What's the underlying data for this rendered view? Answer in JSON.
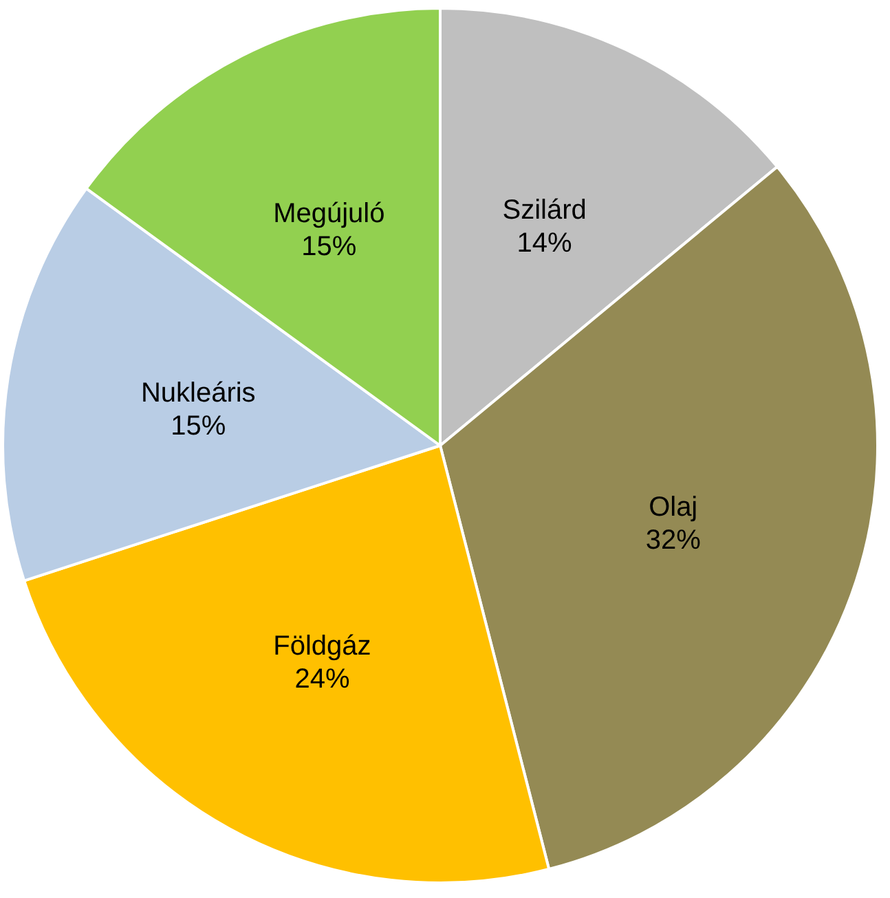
{
  "chart_data": {
    "type": "pie",
    "categories": [
      "Szilárd",
      "Olaj",
      "Földgáz",
      "Nukleáris",
      "Megújuló"
    ],
    "values": [
      14,
      32,
      24,
      15,
      15
    ],
    "colors": [
      "#bfbfbf",
      "#948a54",
      "#ffc000",
      "#b9cde5",
      "#92d050"
    ],
    "value_labels": [
      "14%",
      "32%",
      "24%",
      "15%",
      "15%"
    ]
  }
}
